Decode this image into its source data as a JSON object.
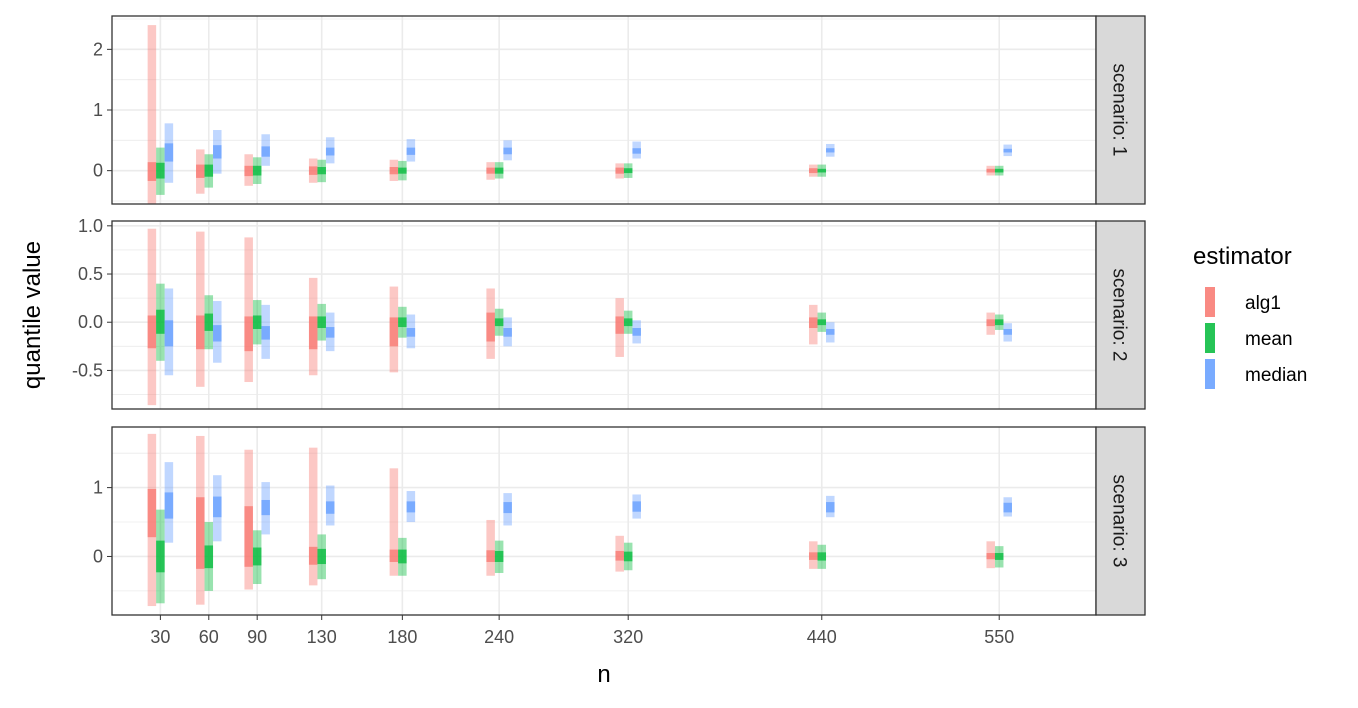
{
  "chart_data": {
    "type": "bar",
    "title": "",
    "xlabel": "n",
    "ylabel": "quantile value",
    "x": [
      30,
      60,
      90,
      130,
      180,
      240,
      320,
      440,
      550
    ],
    "x_tick_labels": [
      "30",
      "60",
      "90",
      "130",
      "180",
      "240",
      "320",
      "440",
      "550"
    ],
    "xlim": [
      0,
      610
    ],
    "grid": true,
    "legend": {
      "title": "estimator",
      "placement": "right",
      "entries": [
        {
          "name": "alg1",
          "color": "#F8766D"
        },
        {
          "name": "mean",
          "color": "#00BA38"
        },
        {
          "name": "median",
          "color": "#619CFF"
        }
      ]
    },
    "panels": [
      {
        "strip": "scenario: 1",
        "ylim": [
          -0.55,
          2.55
        ],
        "y_ticks": [
          0,
          1,
          2
        ],
        "y_tick_labels": [
          "0",
          "1",
          "2"
        ],
        "series": [
          {
            "name": "alg1",
            "outer": [
              [
                -0.55,
                2.4
              ],
              [
                -0.38,
                0.35
              ],
              [
                -0.25,
                0.27
              ],
              [
                -0.2,
                0.2
              ],
              [
                -0.17,
                0.18
              ],
              [
                -0.15,
                0.14
              ],
              [
                -0.13,
                0.12
              ],
              [
                -0.1,
                0.1
              ],
              [
                -0.08,
                0.08
              ]
            ],
            "inner": [
              [
                -0.17,
                0.14
              ],
              [
                -0.12,
                0.1
              ],
              [
                -0.09,
                0.08
              ],
              [
                -0.07,
                0.07
              ],
              [
                -0.06,
                0.06
              ],
              [
                -0.05,
                0.05
              ],
              [
                -0.05,
                0.05
              ],
              [
                -0.04,
                0.04
              ],
              [
                -0.03,
                0.03
              ]
            ]
          },
          {
            "name": "mean",
            "outer": [
              [
                -0.4,
                0.38
              ],
              [
                -0.28,
                0.27
              ],
              [
                -0.22,
                0.22
              ],
              [
                -0.19,
                0.18
              ],
              [
                -0.16,
                0.16
              ],
              [
                -0.13,
                0.14
              ],
              [
                -0.12,
                0.12
              ],
              [
                -0.1,
                0.1
              ],
              [
                -0.08,
                0.08
              ]
            ],
            "inner": [
              [
                -0.13,
                0.13
              ],
              [
                -0.1,
                0.1
              ],
              [
                -0.08,
                0.08
              ],
              [
                -0.06,
                0.06
              ],
              [
                -0.05,
                0.05
              ],
              [
                -0.05,
                0.05
              ],
              [
                -0.04,
                0.04
              ],
              [
                -0.03,
                0.03
              ],
              [
                -0.03,
                0.03
              ]
            ]
          },
          {
            "name": "median",
            "outer": [
              [
                -0.2,
                0.78
              ],
              [
                -0.05,
                0.67
              ],
              [
                0.08,
                0.6
              ],
              [
                0.12,
                0.55
              ],
              [
                0.15,
                0.52
              ],
              [
                0.17,
                0.5
              ],
              [
                0.2,
                0.48
              ],
              [
                0.23,
                0.44
              ],
              [
                0.24,
                0.43
              ]
            ],
            "inner": [
              [
                0.15,
                0.45
              ],
              [
                0.2,
                0.42
              ],
              [
                0.23,
                0.4
              ],
              [
                0.25,
                0.38
              ],
              [
                0.26,
                0.38
              ],
              [
                0.27,
                0.38
              ],
              [
                0.28,
                0.37
              ],
              [
                0.3,
                0.37
              ],
              [
                0.3,
                0.36
              ]
            ]
          }
        ]
      },
      {
        "strip": "scenario: 2",
        "ylim": [
          -0.9,
          1.05
        ],
        "y_ticks": [
          -0.5,
          0.0,
          0.5,
          1.0
        ],
        "y_tick_labels": [
          "-0.5",
          "0.0",
          "0.5",
          "1.0"
        ],
        "series": [
          {
            "name": "alg1",
            "outer": [
              [
                -0.86,
                0.97
              ],
              [
                -0.67,
                0.94
              ],
              [
                -0.62,
                0.88
              ],
              [
                -0.55,
                0.46
              ],
              [
                -0.52,
                0.37
              ],
              [
                -0.38,
                0.35
              ],
              [
                -0.36,
                0.25
              ],
              [
                -0.23,
                0.18
              ],
              [
                -0.13,
                0.1
              ]
            ],
            "inner": [
              [
                -0.27,
                0.07
              ],
              [
                -0.28,
                0.07
              ],
              [
                -0.3,
                0.06
              ],
              [
                -0.28,
                0.06
              ],
              [
                -0.25,
                0.05
              ],
              [
                -0.2,
                0.1
              ],
              [
                -0.12,
                0.06
              ],
              [
                -0.06,
                0.05
              ],
              [
                -0.04,
                0.03
              ]
            ]
          },
          {
            "name": "mean",
            "outer": [
              [
                -0.4,
                0.4
              ],
              [
                -0.28,
                0.28
              ],
              [
                -0.23,
                0.23
              ],
              [
                -0.19,
                0.19
              ],
              [
                -0.16,
                0.16
              ],
              [
                -0.14,
                0.14
              ],
              [
                -0.12,
                0.12
              ],
              [
                -0.1,
                0.1
              ],
              [
                -0.08,
                0.08
              ]
            ],
            "inner": [
              [
                -0.12,
                0.13
              ],
              [
                -0.09,
                0.09
              ],
              [
                -0.07,
                0.07
              ],
              [
                -0.06,
                0.06
              ],
              [
                -0.05,
                0.05
              ],
              [
                -0.04,
                0.04
              ],
              [
                -0.04,
                0.04
              ],
              [
                -0.03,
                0.03
              ],
              [
                -0.03,
                0.03
              ]
            ]
          },
          {
            "name": "median",
            "outer": [
              [
                -0.55,
                0.35
              ],
              [
                -0.42,
                0.22
              ],
              [
                -0.38,
                0.18
              ],
              [
                -0.3,
                0.1
              ],
              [
                -0.27,
                0.08
              ],
              [
                -0.25,
                0.05
              ],
              [
                -0.22,
                0.02
              ],
              [
                -0.21,
                0.0
              ],
              [
                -0.2,
                -0.01
              ]
            ],
            "inner": [
              [
                -0.25,
                0.02
              ],
              [
                -0.2,
                -0.03
              ],
              [
                -0.18,
                -0.04
              ],
              [
                -0.16,
                -0.05
              ],
              [
                -0.15,
                -0.06
              ],
              [
                -0.15,
                -0.06
              ],
              [
                -0.14,
                -0.06
              ],
              [
                -0.13,
                -0.07
              ],
              [
                -0.13,
                -0.07
              ]
            ]
          }
        ]
      },
      {
        "strip": "scenario: 3",
        "ylim": [
          -0.85,
          1.88
        ],
        "y_ticks": [
          0,
          1
        ],
        "y_tick_labels": [
          "0",
          "1"
        ],
        "series": [
          {
            "name": "alg1",
            "outer": [
              [
                -0.72,
                1.78
              ],
              [
                -0.7,
                1.75
              ],
              [
                -0.48,
                1.55
              ],
              [
                -0.42,
                1.58
              ],
              [
                -0.28,
                1.28
              ],
              [
                -0.28,
                0.53
              ],
              [
                -0.22,
                0.3
              ],
              [
                -0.18,
                0.22
              ],
              [
                -0.17,
                0.22
              ]
            ],
            "inner": [
              [
                0.28,
                0.98
              ],
              [
                -0.18,
                0.86
              ],
              [
                -0.15,
                0.73
              ],
              [
                -0.12,
                0.14
              ],
              [
                -0.08,
                0.1
              ],
              [
                -0.08,
                0.09
              ],
              [
                -0.06,
                0.08
              ],
              [
                -0.05,
                0.06
              ],
              [
                -0.04,
                0.05
              ]
            ]
          },
          {
            "name": "mean",
            "outer": [
              [
                -0.68,
                0.68
              ],
              [
                -0.5,
                0.5
              ],
              [
                -0.4,
                0.38
              ],
              [
                -0.33,
                0.32
              ],
              [
                -0.28,
                0.27
              ],
              [
                -0.24,
                0.23
              ],
              [
                -0.2,
                0.2
              ],
              [
                -0.18,
                0.17
              ],
              [
                -0.16,
                0.15
              ]
            ],
            "inner": [
              [
                -0.23,
                0.23
              ],
              [
                -0.17,
                0.16
              ],
              [
                -0.13,
                0.13
              ],
              [
                -0.11,
                0.11
              ],
              [
                -0.1,
                0.1
              ],
              [
                -0.08,
                0.08
              ],
              [
                -0.07,
                0.07
              ],
              [
                -0.06,
                0.06
              ],
              [
                -0.05,
                0.05
              ]
            ]
          },
          {
            "name": "median",
            "outer": [
              [
                0.2,
                1.37
              ],
              [
                0.22,
                1.18
              ],
              [
                0.32,
                1.08
              ],
              [
                0.45,
                1.03
              ],
              [
                0.5,
                0.95
              ],
              [
                0.45,
                0.92
              ],
              [
                0.55,
                0.9
              ],
              [
                0.57,
                0.88
              ],
              [
                0.58,
                0.86
              ]
            ],
            "inner": [
              [
                0.55,
                0.93
              ],
              [
                0.57,
                0.87
              ],
              [
                0.6,
                0.82
              ],
              [
                0.62,
                0.8
              ],
              [
                0.64,
                0.8
              ],
              [
                0.63,
                0.79
              ],
              [
                0.65,
                0.8
              ],
              [
                0.64,
                0.79
              ],
              [
                0.64,
                0.78
              ]
            ]
          }
        ]
      }
    ]
  }
}
